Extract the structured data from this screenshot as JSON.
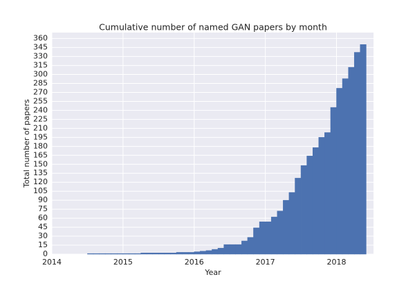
{
  "chart_data": {
    "type": "histogram",
    "title": "Cumulative number of named GAN papers by month",
    "xlabel": "Year",
    "ylabel": "Total number of papers",
    "bins": [
      2014.5,
      2014.583,
      2014.667,
      2014.75,
      2014.833,
      2014.917,
      2015.0,
      2015.083,
      2015.167,
      2015.25,
      2015.333,
      2015.417,
      2015.5,
      2015.583,
      2015.667,
      2015.75,
      2015.833,
      2015.917,
      2016.0,
      2016.083,
      2016.167,
      2016.25,
      2016.333,
      2016.417,
      2016.5,
      2016.583,
      2016.667,
      2016.75,
      2016.833,
      2016.917,
      2017.0,
      2017.083,
      2017.167,
      2017.25,
      2017.333,
      2017.417,
      2017.5,
      2017.583,
      2017.667,
      2017.75,
      2017.833,
      2017.917,
      2018.0,
      2018.083,
      2018.167,
      2018.25,
      2018.333,
      2018.417
    ],
    "values": [
      1,
      1,
      1,
      1,
      1,
      1,
      1,
      1,
      1,
      2,
      2,
      2,
      2,
      2,
      2,
      3,
      3,
      3,
      4,
      5,
      6,
      8,
      10,
      16,
      16,
      16,
      22,
      28,
      44,
      54,
      54,
      62,
      72,
      90,
      103,
      127,
      148,
      164,
      178,
      195,
      203,
      245,
      277,
      293,
      312,
      337,
      350
    ],
    "color": "#4c72b0",
    "xlim": [
      2014,
      2018.52
    ],
    "xticks": [
      2014,
      2015,
      2016,
      2017,
      2018
    ],
    "ylim": [
      0,
      370
    ],
    "yticks": [
      0,
      15,
      30,
      45,
      60,
      75,
      90,
      105,
      120,
      135,
      150,
      165,
      180,
      195,
      210,
      225,
      240,
      255,
      270,
      285,
      300,
      315,
      330,
      345,
      360
    ],
    "grid": true,
    "background": "#eaeaf2"
  }
}
